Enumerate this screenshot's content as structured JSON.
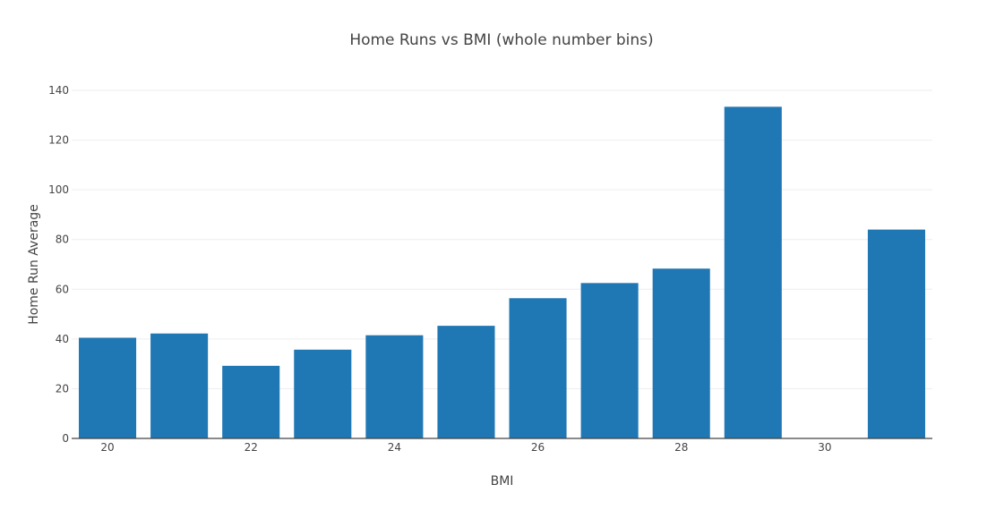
{
  "chart_data": {
    "type": "bar",
    "title": "Home Runs vs BMI (whole number bins)",
    "xlabel": "BMI",
    "ylabel": "Home Run Average",
    "x": [
      20,
      21,
      22,
      23,
      24,
      25,
      26,
      27,
      28,
      29,
      30,
      31
    ],
    "values": [
      40.5,
      42.2,
      29.2,
      35.7,
      41.5,
      45.3,
      56.4,
      62.5,
      68.3,
      133.4,
      0,
      84.0
    ],
    "xticks": [
      20,
      22,
      24,
      26,
      28,
      30
    ],
    "yticks": [
      0,
      20,
      40,
      60,
      80,
      100,
      120,
      140
    ],
    "ylim": [
      0,
      140
    ],
    "grid": true,
    "bar_color": "#1f77b4"
  }
}
